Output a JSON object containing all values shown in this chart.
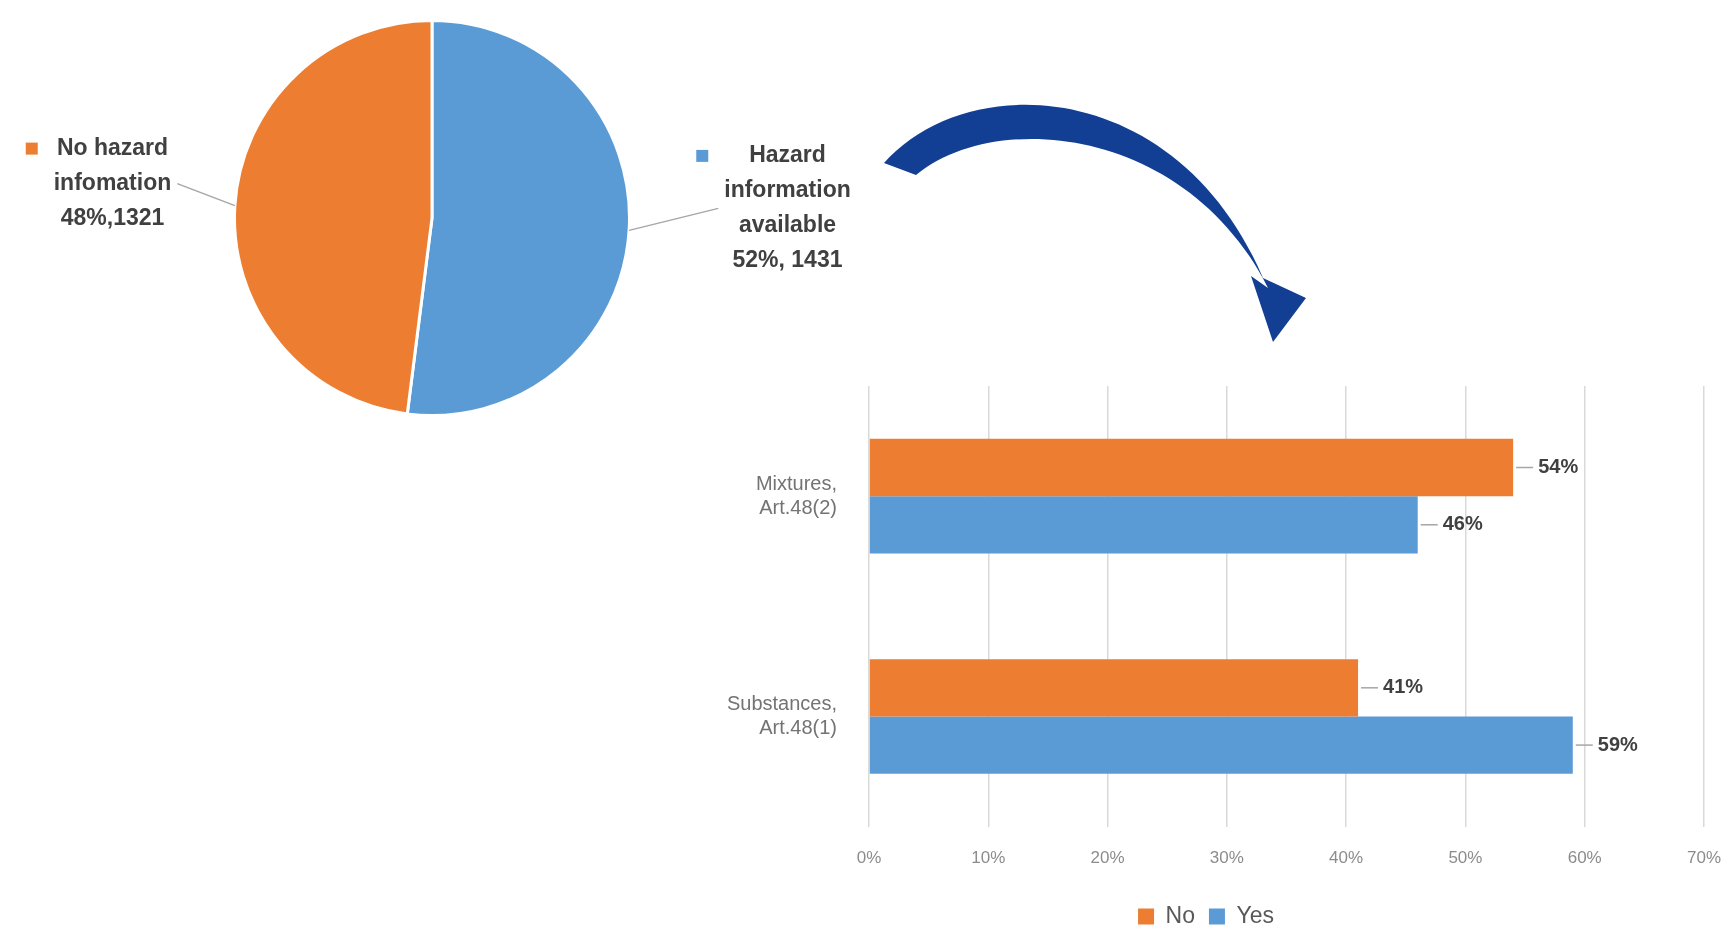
{
  "chart_data": [
    {
      "type": "pie",
      "categories": [
        "Hazard information available",
        "No hazard infomation"
      ],
      "values": [
        1431,
        1321
      ],
      "colors": [
        "#5b9bd5",
        "#ed7d31"
      ],
      "value_labels": [
        "52%, 1431",
        "48%,1321"
      ],
      "legend": "left"
    },
    {
      "type": "bar",
      "orientation": "horizontal",
      "categories": [
        "Mixtures, Art.48(2)",
        "Substances, Art.48(1)"
      ],
      "series": [
        {
          "name": "No",
          "color": "#ed7d31",
          "values": [
            54,
            41
          ],
          "value_labels": [
            "54%",
            "41%"
          ]
        },
        {
          "name": "Yes",
          "color": "#5b9bd5",
          "values": [
            46,
            59
          ],
          "value_labels": [
            "46%",
            "59%"
          ]
        }
      ],
      "xlim": [
        0,
        70
      ],
      "xticks": [
        {
          "value": 0,
          "label": "0%"
        },
        {
          "value": 10,
          "label": "10%"
        },
        {
          "value": 20,
          "label": "20%"
        },
        {
          "value": 30,
          "label": "30%"
        },
        {
          "value": 40,
          "label": "40%"
        },
        {
          "value": 50,
          "label": "50%"
        },
        {
          "value": 60,
          "label": "60%"
        },
        {
          "value": 70,
          "label": "70%"
        }
      ],
      "grid": "x",
      "legend": "bottom"
    }
  ]
}
